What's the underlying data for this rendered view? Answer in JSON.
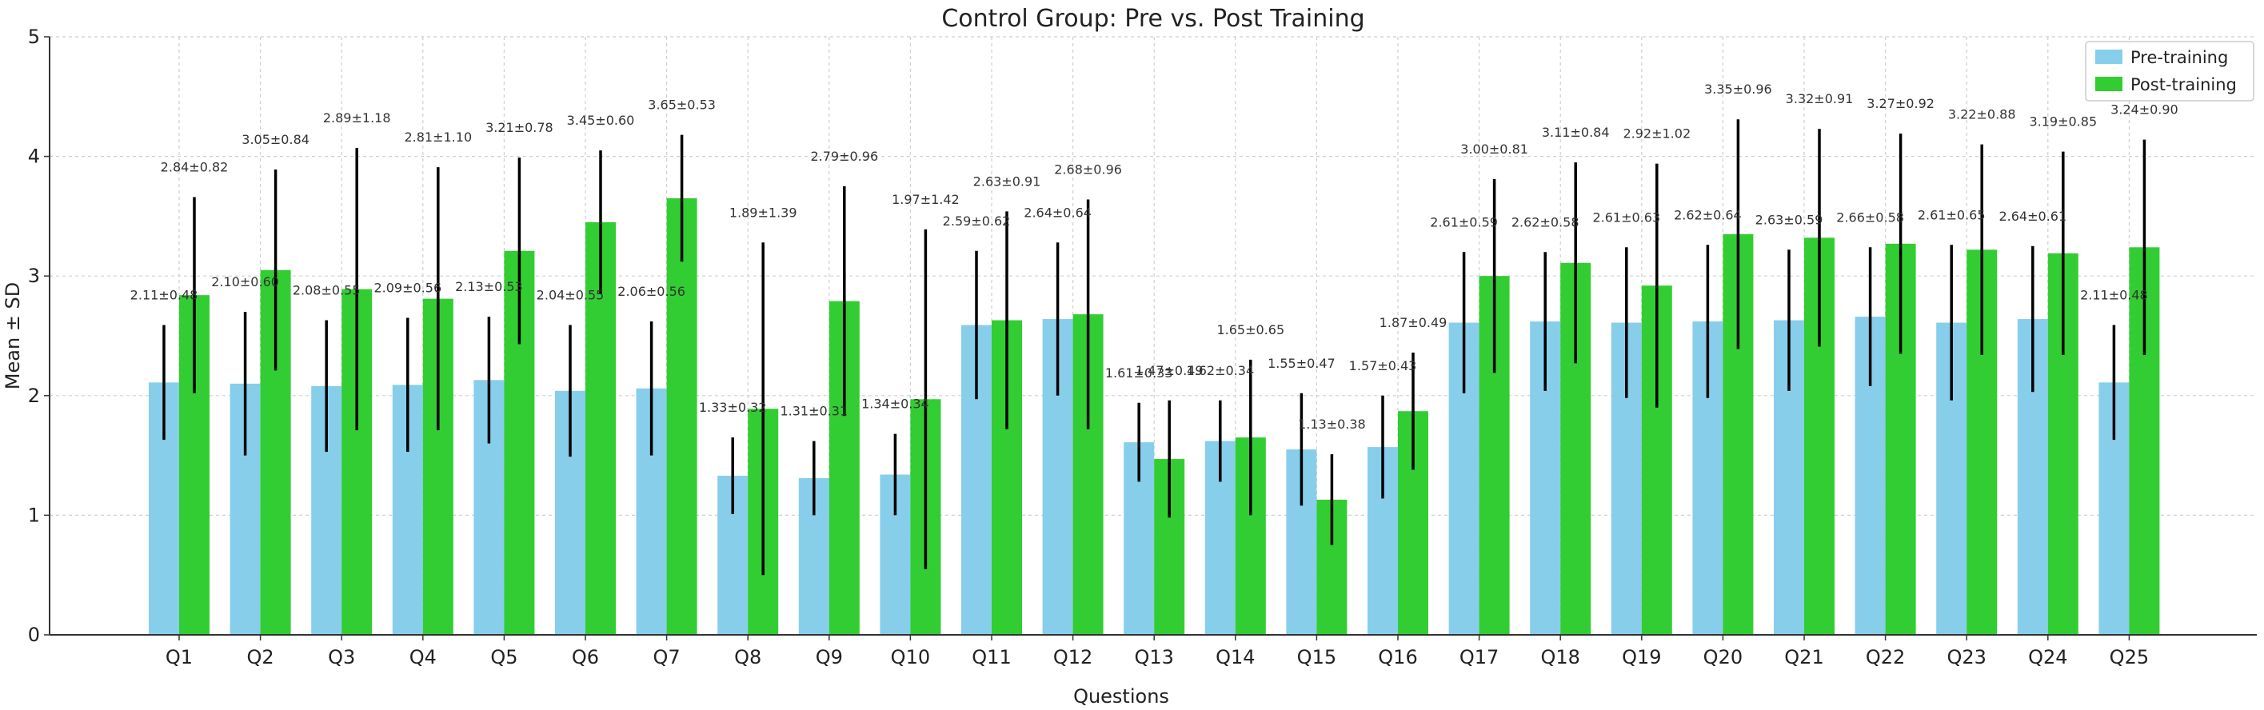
{
  "chart_data": {
    "type": "bar",
    "title": "Control Group: Pre vs. Post Training",
    "xlabel": "Questions",
    "ylabel": "Mean ± SD",
    "ylim": [
      0,
      5
    ],
    "yticks": [
      0,
      1,
      2,
      3,
      4,
      5
    ],
    "grid": true,
    "legend_position": "top-right",
    "categories": [
      "Q1",
      "Q2",
      "Q3",
      "Q4",
      "Q5",
      "Q6",
      "Q7",
      "Q8",
      "Q9",
      "Q10",
      "Q11",
      "Q12",
      "Q13",
      "Q14",
      "Q15",
      "Q16",
      "Q17",
      "Q18",
      "Q19",
      "Q20",
      "Q21",
      "Q22",
      "Q23",
      "Q24",
      "Q25"
    ],
    "series": [
      {
        "name": "Pre-training",
        "color": "#87ceeb",
        "values": [
          2.11,
          2.1,
          2.08,
          2.09,
          2.13,
          2.04,
          2.06,
          1.33,
          1.31,
          1.34,
          2.59,
          2.64,
          1.61,
          1.62,
          1.55,
          1.57,
          2.61,
          2.62,
          2.61,
          2.62,
          2.63,
          2.66,
          2.61,
          2.64,
          2.11
        ],
        "sd": [
          0.48,
          0.6,
          0.55,
          0.56,
          0.53,
          0.55,
          0.56,
          0.32,
          0.31,
          0.34,
          0.62,
          0.64,
          0.33,
          0.34,
          0.47,
          0.43,
          0.59,
          0.58,
          0.63,
          0.64,
          0.59,
          0.58,
          0.65,
          0.61,
          0.48
        ],
        "labels": [
          "2.11±0.48",
          "2.10±0.60",
          "2.08±0.55",
          "2.09±0.56",
          "2.13±0.53",
          "2.04±0.55",
          "2.06±0.56",
          "1.33±0.32",
          "1.31±0.31",
          "1.34±0.34",
          "2.59±0.62",
          "2.64±0.64",
          "1.61±0.33",
          "1.62±0.34",
          "1.55±0.47",
          "1.57±0.43",
          "2.61±0.59",
          "2.62±0.58",
          "2.61±0.63",
          "2.62±0.64",
          "2.63±0.59",
          "2.66±0.58",
          "2.61±0.65",
          "2.64±0.61",
          "2.11±0.48"
        ]
      },
      {
        "name": "Post-training",
        "color": "#32cd32",
        "values": [
          2.84,
          3.05,
          2.89,
          2.81,
          3.21,
          3.45,
          3.65,
          1.89,
          2.79,
          1.97,
          2.63,
          2.68,
          1.47,
          1.65,
          1.13,
          1.87,
          3.0,
          3.11,
          2.92,
          3.35,
          3.32,
          3.27,
          3.22,
          3.19,
          3.24
        ],
        "sd": [
          0.82,
          0.84,
          1.18,
          1.1,
          0.78,
          0.6,
          0.53,
          1.39,
          0.96,
          1.42,
          0.91,
          0.96,
          0.49,
          0.65,
          0.38,
          0.49,
          0.81,
          0.84,
          1.02,
          0.96,
          0.91,
          0.92,
          0.88,
          0.85,
          0.9
        ],
        "labels": [
          "2.84±0.82",
          "3.05±0.84",
          "2.89±1.18",
          "2.81±1.10",
          "3.21±0.78",
          "3.45±0.60",
          "3.65±0.53",
          "1.89±1.39",
          "2.79±0.96",
          "1.97±1.42",
          "2.63±0.91",
          "2.68±0.96",
          "1.47±0.49",
          "1.65±0.65",
          "1.13±0.38",
          "1.87±0.49",
          "3.00±0.81",
          "3.11±0.84",
          "2.92±1.02",
          "3.35±0.96",
          "3.32±0.91",
          "3.27±0.92",
          "3.22±0.88",
          "3.19±0.85",
          "3.24±0.90"
        ]
      }
    ]
  }
}
